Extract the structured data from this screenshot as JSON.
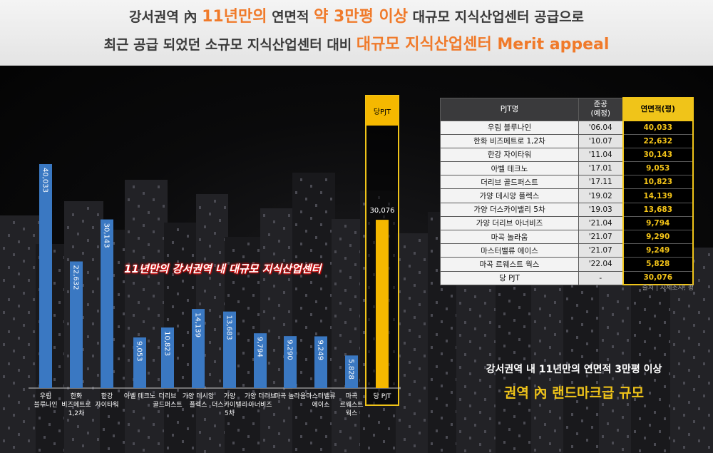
{
  "banner": {
    "l1_a": "강서권역 內 ",
    "l1_b": "11년만의",
    "l1_c": " 연면적 ",
    "l1_d": "약 3만평 이상",
    "l1_e": " 대규모 지식산업센터 공급으로",
    "l2_a": "최근 공급 되었던 소규모 지식산업센터 대비 ",
    "l2_b": "대규모 지식산업센터 Merit appeal"
  },
  "colors": {
    "bar": "#3a78c2",
    "highlight": "#f5b800",
    "highlight_border": "#f0c419"
  },
  "chart_data": {
    "type": "bar",
    "categories": [
      [
        "우림",
        "블루나인"
      ],
      [
        "한화",
        "비즈메트로",
        "1,2차"
      ],
      [
        "한강",
        "자이타워"
      ],
      [
        "아벨 테크노"
      ],
      [
        "더리브",
        "골드퍼스트"
      ],
      [
        "가양 데시앙",
        "플렉스"
      ],
      [
        "가양",
        "더스카이밸리",
        "5차"
      ],
      [
        "가양 더리브",
        "아너비즈"
      ],
      [
        "마곡 놀라움"
      ],
      [
        "마스터밸류",
        "에이스"
      ],
      [
        "마곡",
        "르웨스트",
        "웍스"
      ],
      [
        "당 PJT"
      ]
    ],
    "values": [
      40033,
      22632,
      30143,
      9053,
      10823,
      14139,
      13683,
      9794,
      9290,
      9249,
      5828,
      30076
    ],
    "value_labels": [
      "40,033",
      "22,632",
      "30,143",
      "9,053",
      "10,823",
      "14,139",
      "13,683",
      "9,794",
      "9,290",
      "9,249",
      "5,828",
      "30,076"
    ],
    "highlight_index": 11,
    "highlight_header": "당PJT",
    "annotation": "11년만의 강서권역 내 대규모 지식산업센터",
    "ylim": [
      0,
      45000
    ]
  },
  "table": {
    "headers": [
      "PJT명",
      "준공\n(예정)",
      "연면적(평)"
    ],
    "rows": [
      [
        "우림 블루나인",
        "'06.04",
        "40,033"
      ],
      [
        "한화 비즈메트로 1,2차",
        "'10.07",
        "22,632"
      ],
      [
        "한강 자이타워",
        "'11.04",
        "30,143"
      ],
      [
        "아벨 테크노",
        "'17.01",
        "9,053"
      ],
      [
        "더리브 골드퍼스트",
        "'17.11",
        "10,823"
      ],
      [
        "가양 데시앙 플렉스",
        "'19.02",
        "14,139"
      ],
      [
        "가양 더스카이밸리 5차",
        "'19.03",
        "13,683"
      ],
      [
        "가양 더리브 아너비즈",
        "'21.04",
        "9,794"
      ],
      [
        "마곡 놀라움",
        "'21.07",
        "9,290"
      ],
      [
        "마스터밸류 에이스",
        "'21.07",
        "9,249"
      ],
      [
        "마곡 르웨스트 웍스",
        "'22.04",
        "5,828"
      ],
      [
        "당 PJT",
        "-",
        "30,076"
      ]
    ],
    "source": "출처 | 자체조사, 평"
  },
  "caption": {
    "line1": "강서권역 내 11년만의 연면적 3만평 이상",
    "line2": "권역 內 랜드마크급 규모"
  }
}
